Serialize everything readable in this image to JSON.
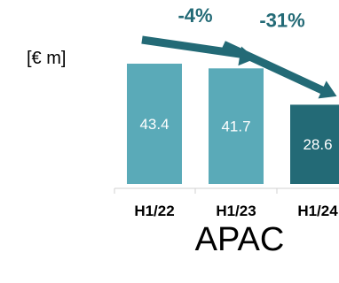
{
  "chart_data": {
    "type": "bar",
    "unit_label": "[€ m]",
    "categories": [
      "H1/22",
      "H1/23",
      "H1/24"
    ],
    "values": [
      43.4,
      41.7,
      28.6
    ],
    "value_labels": [
      "43.4",
      "41.7",
      "28.6"
    ],
    "bar_colors": [
      "#5aaab8",
      "#5aaab8",
      "#236a76"
    ],
    "label_colors": [
      "#ffffff",
      "#ffffff",
      "#ffffff"
    ],
    "group_title": "APAC",
    "changes": [
      {
        "from": 0,
        "to": 1,
        "label": "-4%"
      },
      {
        "from": 1,
        "to": 2,
        "label": "-31%"
      }
    ],
    "change_color": "#236a76",
    "ylim": [
      0,
      43.4
    ],
    "grid": false,
    "legend": "none"
  }
}
